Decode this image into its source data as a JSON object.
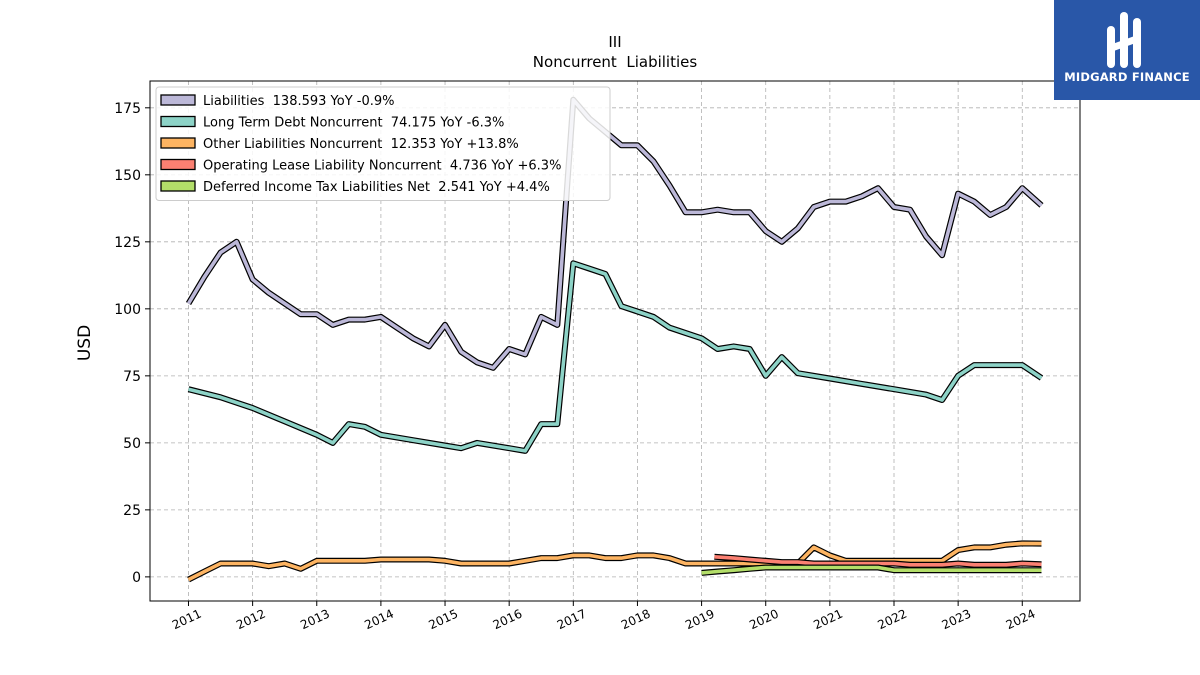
{
  "chart_data": {
    "type": "line",
    "title": "III",
    "subtitle": "Noncurrent  Liabilities",
    "xlabel": "",
    "ylabel": "USD",
    "xlim": [
      2010.4,
      2024.9
    ],
    "ylim": [
      -9,
      185
    ],
    "x_ticks": [
      2011,
      2012,
      2013,
      2014,
      2015,
      2016,
      2017,
      2018,
      2019,
      2020,
      2021,
      2022,
      2023,
      2024
    ],
    "x_tick_labels": [
      "2011",
      "2012",
      "2013",
      "2014",
      "2015",
      "2016",
      "2017",
      "2018",
      "2019",
      "2020",
      "2021",
      "2022",
      "2023",
      "2024"
    ],
    "y_ticks": [
      0,
      25,
      50,
      75,
      100,
      125,
      150,
      175
    ],
    "y_tick_labels": [
      "0",
      "25",
      "50",
      "75",
      "100",
      "125",
      "150",
      "175"
    ],
    "grid": true,
    "legend_position": "top-left",
    "series": [
      {
        "name": "Liabilities  138.593 YoY -0.9%",
        "color": "#bcb8d8",
        "x": [
          2011.0,
          2011.25,
          2011.5,
          2011.75,
          2012.0,
          2012.25,
          2012.5,
          2012.75,
          2013.0,
          2013.25,
          2013.5,
          2013.75,
          2014.0,
          2014.25,
          2014.5,
          2014.75,
          2015.0,
          2015.25,
          2015.5,
          2015.75,
          2016.0,
          2016.25,
          2016.5,
          2016.75,
          2017.0,
          2017.25,
          2017.5,
          2017.75,
          2018.0,
          2018.25,
          2018.5,
          2018.75,
          2019.0,
          2019.25,
          2019.5,
          2019.75,
          2020.0,
          2020.25,
          2020.5,
          2020.75,
          2021.0,
          2021.25,
          2021.5,
          2021.75,
          2022.0,
          2022.25,
          2022.5,
          2022.75,
          2023.0,
          2023.25,
          2023.5,
          2023.75,
          2024.0,
          2024.3
        ],
        "values": [
          102,
          112,
          121,
          125,
          111,
          106,
          102,
          98,
          98,
          94,
          96,
          96,
          97,
          93,
          89,
          86,
          94,
          84,
          80,
          78,
          85,
          83,
          97,
          94,
          178,
          171,
          166,
          161,
          161,
          155,
          146,
          136,
          136,
          137,
          136,
          136,
          129,
          125,
          130,
          138,
          140,
          140,
          142,
          145,
          138,
          137,
          127,
          120,
          143,
          140,
          135,
          138,
          145,
          138.6
        ]
      },
      {
        "name": "Long Term Debt Noncurrent  74.175 YoY -6.3%",
        "color": "#8dd3c7",
        "x": [
          2011.0,
          2011.5,
          2012.0,
          2012.5,
          2013.0,
          2013.25,
          2013.5,
          2013.75,
          2014.0,
          2014.5,
          2015.0,
          2015.25,
          2015.5,
          2016.0,
          2016.25,
          2016.5,
          2016.75,
          2017.0,
          2017.25,
          2017.5,
          2017.75,
          2018.0,
          2018.25,
          2018.5,
          2018.75,
          2019.0,
          2019.25,
          2019.5,
          2019.75,
          2020.0,
          2020.25,
          2020.5,
          2021.0,
          2021.5,
          2022.0,
          2022.5,
          2022.75,
          2023.0,
          2023.25,
          2023.5,
          2023.75,
          2024.0,
          2024.3
        ],
        "values": [
          70,
          67,
          63,
          58,
          53,
          50,
          57,
          56,
          53,
          51,
          49,
          48,
          50,
          48,
          47,
          57,
          57,
          117,
          115,
          113,
          101,
          99,
          97,
          93,
          91,
          89,
          85,
          86,
          85,
          75,
          82,
          76,
          74,
          72,
          70,
          68,
          66,
          75,
          79,
          79,
          79,
          79,
          74.2
        ]
      },
      {
        "name": "Other Liabilities Noncurrent  12.353 YoY +13.8%",
        "color": "#fdb462",
        "x": [
          2011.0,
          2011.25,
          2011.5,
          2011.75,
          2012.0,
          2012.25,
          2012.5,
          2012.75,
          2013.0,
          2013.25,
          2013.5,
          2013.75,
          2014.0,
          2014.25,
          2014.5,
          2014.75,
          2015.0,
          2015.25,
          2015.5,
          2015.75,
          2016.0,
          2016.25,
          2016.5,
          2016.75,
          2017.0,
          2017.25,
          2017.5,
          2017.75,
          2018.0,
          2018.25,
          2018.5,
          2018.75,
          2019.0,
          2019.25,
          2019.5,
          2019.75,
          2020.0,
          2020.25,
          2020.5,
          2020.75,
          2021.0,
          2021.25,
          2021.5,
          2021.75,
          2022.0,
          2022.25,
          2022.5,
          2022.75,
          2023.0,
          2023.25,
          2023.5,
          2023.75,
          2024.0,
          2024.3
        ],
        "values": [
          -1,
          2,
          5,
          5,
          5,
          4,
          5,
          3,
          6,
          6,
          6,
          6,
          6.5,
          6.5,
          6.5,
          6.5,
          6,
          5,
          5,
          5,
          5,
          6,
          7,
          7,
          8,
          8,
          7,
          7,
          8,
          8,
          7,
          5,
          5,
          5,
          5,
          5,
          5,
          5,
          5,
          11,
          8,
          6,
          6,
          6,
          6,
          6,
          6,
          6,
          10,
          11,
          11,
          12,
          12.5,
          12.4
        ]
      },
      {
        "name": "Operating Lease Liability Noncurrent  4.736 YoY +6.3%",
        "color": "#fb8072",
        "x": [
          2019.2,
          2019.5,
          2019.75,
          2020.0,
          2020.25,
          2020.5,
          2020.75,
          2021.0,
          2021.25,
          2021.5,
          2021.75,
          2022.0,
          2022.25,
          2022.5,
          2022.75,
          2023.0,
          2023.25,
          2023.5,
          2023.75,
          2024.0,
          2024.3
        ],
        "values": [
          7.5,
          7,
          6.5,
          6,
          5.5,
          5.5,
          5,
          5,
          5,
          5,
          5,
          5,
          4.5,
          4.5,
          4.5,
          5,
          4.5,
          4.5,
          4.5,
          5,
          4.7
        ]
      },
      {
        "name": "Deferred Income Tax Liabilities Net  2.541 YoY +4.4%",
        "color": "#b3de69",
        "x": [
          2019.0,
          2019.25,
          2019.5,
          2019.75,
          2020.0,
          2020.25,
          2020.5,
          2020.75,
          2021.0,
          2021.25,
          2021.5,
          2021.75,
          2022.0,
          2022.25,
          2022.5,
          2022.75,
          2023.0,
          2023.25,
          2023.5,
          2023.75,
          2024.0,
          2024.3
        ],
        "values": [
          1.5,
          2,
          2.5,
          3,
          3.5,
          3.5,
          3.5,
          3.5,
          3.5,
          3.5,
          3.5,
          3.5,
          2.5,
          2.5,
          2.5,
          2.5,
          2.5,
          2.5,
          2.5,
          2.5,
          2.5,
          2.5
        ]
      }
    ]
  },
  "logo": {
    "text": "MIDGARD FINANCE"
  }
}
